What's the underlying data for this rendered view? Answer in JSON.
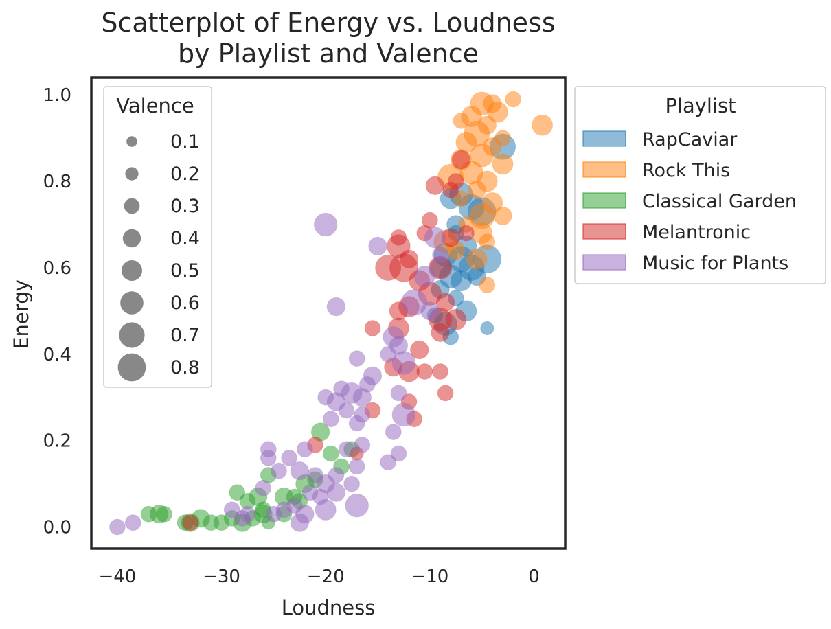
{
  "chart_data": {
    "type": "scatter",
    "title": [
      "Scatterplot of Energy vs. Loudness",
      "by Playlist and Valence"
    ],
    "xlabel": "Loudness",
    "ylabel": "Energy",
    "xlim": [
      -42.5,
      3.0
    ],
    "ylim": [
      -0.05,
      1.04
    ],
    "xticks": [
      -40,
      -30,
      -20,
      -10,
      0
    ],
    "xtick_labels": [
      "−40",
      "−30",
      "−20",
      "−10",
      "0"
    ],
    "yticks": [
      0.0,
      0.2,
      0.4,
      0.6,
      0.8,
      1.0
    ],
    "ytick_labels": [
      "0.0",
      "0.2",
      "0.4",
      "0.6",
      "0.8",
      "1.0"
    ],
    "grid": false,
    "size_legend": {
      "title": "Valence",
      "placement": "upper-left inside plot",
      "values": [
        0.1,
        0.2,
        0.3,
        0.4,
        0.5,
        0.6,
        0.7,
        0.8
      ],
      "labels": [
        "0.1",
        "0.2",
        "0.3",
        "0.4",
        "0.5",
        "0.6",
        "0.7",
        "0.8"
      ]
    },
    "hue_legend": {
      "title": "Playlist",
      "placement": "outside right, top"
    },
    "series": [
      {
        "name": "RapCaviar",
        "color": "#1f77b4",
        "points": [
          [
            -8.0,
            0.76,
            0.5
          ],
          [
            -7.0,
            0.77,
            0.6
          ],
          [
            -6.0,
            0.74,
            0.7
          ],
          [
            -5.0,
            0.73,
            0.8
          ],
          [
            -7.5,
            0.7,
            0.4
          ],
          [
            -6.5,
            0.65,
            0.5
          ],
          [
            -8.5,
            0.63,
            0.6
          ],
          [
            -7.0,
            0.62,
            0.7
          ],
          [
            -4.5,
            0.62,
            0.8
          ],
          [
            -6.0,
            0.6,
            0.7
          ],
          [
            -8.0,
            0.58,
            0.6
          ],
          [
            -5.5,
            0.58,
            0.4
          ],
          [
            -7.0,
            0.57,
            0.5
          ],
          [
            -9.0,
            0.55,
            0.4
          ],
          [
            -7.5,
            0.53,
            0.3
          ],
          [
            -6.5,
            0.5,
            0.5
          ],
          [
            -9.5,
            0.49,
            0.3
          ],
          [
            -8.5,
            0.47,
            0.6
          ],
          [
            -8.0,
            0.44,
            0.3
          ],
          [
            -4.5,
            0.46,
            0.2
          ],
          [
            -3.0,
            0.88,
            0.7
          ],
          [
            -7.5,
            0.68,
            0.3
          ],
          [
            -9.0,
            0.6,
            0.5
          ]
        ]
      },
      {
        "name": "Rock This",
        "color": "#ff7f0e",
        "points": [
          [
            -5.0,
            0.98,
            0.6
          ],
          [
            -4.0,
            0.98,
            0.4
          ],
          [
            -2.0,
            0.99,
            0.3
          ],
          [
            -3.5,
            0.96,
            0.5
          ],
          [
            -6.0,
            0.95,
            0.5
          ],
          [
            -7.0,
            0.94,
            0.3
          ],
          [
            -4.5,
            0.93,
            0.4
          ],
          [
            0.8,
            0.93,
            0.5
          ],
          [
            -5.5,
            0.91,
            0.7
          ],
          [
            -3.0,
            0.9,
            0.3
          ],
          [
            -6.5,
            0.89,
            0.5
          ],
          [
            -4.0,
            0.88,
            0.4
          ],
          [
            -5.0,
            0.86,
            0.6
          ],
          [
            -7.0,
            0.85,
            0.5
          ],
          [
            -3.0,
            0.84,
            0.5
          ],
          [
            -6.0,
            0.82,
            0.6
          ],
          [
            -8.0,
            0.81,
            0.7
          ],
          [
            -4.5,
            0.8,
            0.5
          ],
          [
            -5.5,
            0.78,
            0.4
          ],
          [
            -7.0,
            0.76,
            0.3
          ],
          [
            -4.0,
            0.75,
            0.5
          ],
          [
            -5.0,
            0.72,
            0.7
          ],
          [
            -3.0,
            0.72,
            0.4
          ],
          [
            -6.5,
            0.7,
            0.3
          ],
          [
            -5.0,
            0.68,
            0.5
          ],
          [
            -8.5,
            0.66,
            0.6
          ],
          [
            -4.5,
            0.66,
            0.3
          ],
          [
            -7.5,
            0.64,
            0.4
          ],
          [
            -5.5,
            0.62,
            0.5
          ],
          [
            -4.5,
            0.56,
            0.3
          ]
        ]
      },
      {
        "name": "Classical Garden",
        "color": "#2ca02c",
        "points": [
          [
            -37.0,
            0.03,
            0.3
          ],
          [
            -36.0,
            0.03,
            0.4
          ],
          [
            -35.5,
            0.03,
            0.3
          ],
          [
            -33.5,
            0.01,
            0.3
          ],
          [
            -33.0,
            0.01,
            0.4
          ],
          [
            -32.0,
            0.02,
            0.4
          ],
          [
            -31.0,
            0.01,
            0.3
          ],
          [
            -30.0,
            0.01,
            0.3
          ],
          [
            -29.0,
            0.02,
            0.3
          ],
          [
            -28.0,
            0.01,
            0.4
          ],
          [
            -27.0,
            0.02,
            0.3
          ],
          [
            -26.0,
            0.03,
            0.4
          ],
          [
            -25.5,
            0.01,
            0.2
          ],
          [
            -24.0,
            0.03,
            0.3
          ],
          [
            -28.5,
            0.08,
            0.3
          ],
          [
            -27.5,
            0.06,
            0.3
          ],
          [
            -26.5,
            0.07,
            0.4
          ],
          [
            -25.5,
            0.12,
            0.3
          ],
          [
            -24.0,
            0.07,
            0.4
          ],
          [
            -23.0,
            0.07,
            0.3
          ],
          [
            -22.0,
            0.1,
            0.4
          ],
          [
            -21.0,
            0.11,
            0.3
          ],
          [
            -20.5,
            0.22,
            0.4
          ],
          [
            -19.5,
            0.17,
            0.3
          ],
          [
            -18.5,
            0.14,
            0.3
          ],
          [
            -17.5,
            0.18,
            0.3
          ],
          [
            -26.0,
            0.04,
            0.3
          ],
          [
            -22.5,
            0.06,
            0.3
          ]
        ]
      },
      {
        "name": "Melantronic",
        "color": "#d62728",
        "points": [
          [
            -33.0,
            0.01,
            0.3
          ],
          [
            -21.0,
            0.19,
            0.3
          ],
          [
            -17.0,
            0.17,
            0.2
          ],
          [
            -13.0,
            0.67,
            0.3
          ],
          [
            -13.0,
            0.65,
            0.6
          ],
          [
            -14.0,
            0.6,
            0.7
          ],
          [
            -12.5,
            0.6,
            0.8
          ],
          [
            -12.0,
            0.62,
            0.4
          ],
          [
            -9.5,
            0.79,
            0.4
          ],
          [
            -8.0,
            0.78,
            0.3
          ],
          [
            -7.0,
            0.85,
            0.4
          ],
          [
            -10.0,
            0.71,
            0.3
          ],
          [
            -8.0,
            0.67,
            0.4
          ],
          [
            -10.5,
            0.68,
            0.3
          ],
          [
            -9.0,
            0.6,
            0.6
          ],
          [
            -11.0,
            0.57,
            0.5
          ],
          [
            -10.0,
            0.54,
            0.6
          ],
          [
            -8.5,
            0.52,
            0.4
          ],
          [
            -12.0,
            0.51,
            0.5
          ],
          [
            -13.0,
            0.5,
            0.4
          ],
          [
            -9.0,
            0.48,
            0.6
          ],
          [
            -7.5,
            0.48,
            0.5
          ],
          [
            -15.5,
            0.46,
            0.3
          ],
          [
            -13.0,
            0.46,
            0.5
          ],
          [
            -11.0,
            0.41,
            0.4
          ],
          [
            -13.5,
            0.37,
            0.4
          ],
          [
            -12.0,
            0.36,
            0.5
          ],
          [
            -10.5,
            0.36,
            0.3
          ],
          [
            -9.0,
            0.36,
            0.3
          ],
          [
            -8.5,
            0.31,
            0.3
          ],
          [
            -12.0,
            0.29,
            0.3
          ],
          [
            -11.5,
            0.25,
            0.3
          ],
          [
            -15.5,
            0.27,
            0.3
          ],
          [
            -6.5,
            0.68,
            0.3
          ],
          [
            -7.5,
            0.8,
            0.3
          ],
          [
            -9.0,
            0.45,
            0.4
          ]
        ]
      },
      {
        "name": "Music for Plants",
        "color": "#9467bd",
        "points": [
          [
            -40.0,
            0.0,
            0.3
          ],
          [
            -38.5,
            0.01,
            0.3
          ],
          [
            -20.0,
            0.7,
            0.6
          ],
          [
            -15.0,
            0.65,
            0.4
          ],
          [
            -19.0,
            0.51,
            0.4
          ],
          [
            -9.5,
            0.67,
            0.5
          ],
          [
            -9.0,
            0.63,
            0.3
          ],
          [
            -10.5,
            0.58,
            0.5
          ],
          [
            -11.5,
            0.52,
            0.7
          ],
          [
            -10.0,
            0.5,
            0.4
          ],
          [
            -13.5,
            0.44,
            0.5
          ],
          [
            -13.0,
            0.42,
            0.4
          ],
          [
            -12.5,
            0.38,
            0.6
          ],
          [
            -14.0,
            0.4,
            0.3
          ],
          [
            -17.0,
            0.39,
            0.3
          ],
          [
            -15.5,
            0.35,
            0.4
          ],
          [
            -16.0,
            0.33,
            0.3
          ],
          [
            -17.5,
            0.31,
            0.5
          ],
          [
            -16.5,
            0.3,
            0.4
          ],
          [
            -18.5,
            0.32,
            0.3
          ],
          [
            -19.0,
            0.29,
            0.4
          ],
          [
            -20.0,
            0.3,
            0.3
          ],
          [
            -18.0,
            0.27,
            0.3
          ],
          [
            -16.5,
            0.26,
            0.3
          ],
          [
            -19.5,
            0.25,
            0.3
          ],
          [
            -17.0,
            0.24,
            0.3
          ],
          [
            -13.0,
            0.31,
            0.3
          ],
          [
            -12.5,
            0.26,
            0.6
          ],
          [
            -13.5,
            0.22,
            0.3
          ],
          [
            -13.0,
            0.17,
            0.3
          ],
          [
            -14.0,
            0.15,
            0.3
          ],
          [
            -16.5,
            0.19,
            0.3
          ],
          [
            -18.0,
            0.18,
            0.3
          ],
          [
            -22.0,
            0.18,
            0.3
          ],
          [
            -25.5,
            0.16,
            0.3
          ],
          [
            -25.5,
            0.18,
            0.3
          ],
          [
            -23.5,
            0.16,
            0.3
          ],
          [
            -24.5,
            0.13,
            0.3
          ],
          [
            -22.5,
            0.13,
            0.4
          ],
          [
            -21.0,
            0.12,
            0.3
          ],
          [
            -20.0,
            0.1,
            0.4
          ],
          [
            -19.0,
            0.12,
            0.3
          ],
          [
            -17.0,
            0.14,
            0.3
          ],
          [
            -21.5,
            0.08,
            0.3
          ],
          [
            -20.5,
            0.07,
            0.3
          ],
          [
            -23.0,
            0.05,
            0.3
          ],
          [
            -24.0,
            0.04,
            0.3
          ],
          [
            -25.0,
            0.03,
            0.3
          ],
          [
            -22.0,
            0.03,
            0.4
          ],
          [
            -20.0,
            0.04,
            0.5
          ],
          [
            -17.0,
            0.05,
            0.6
          ],
          [
            -22.5,
            0.01,
            0.4
          ],
          [
            -27.5,
            0.03,
            0.3
          ],
          [
            -29.0,
            0.04,
            0.3
          ],
          [
            -28.0,
            0.02,
            0.3
          ],
          [
            -19.0,
            0.08,
            0.4
          ],
          [
            -17.5,
            0.1,
            0.3
          ],
          [
            -26.0,
            0.09,
            0.3
          ]
        ]
      }
    ]
  }
}
